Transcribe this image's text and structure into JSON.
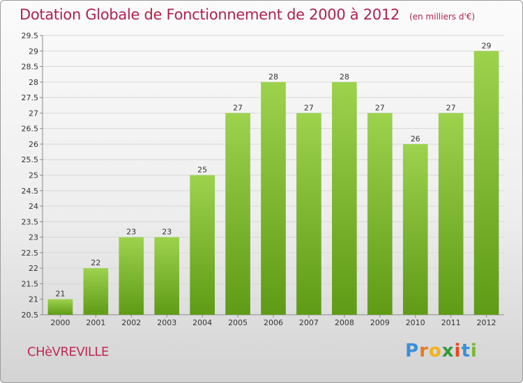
{
  "title": "Dotation Globale de Fonctionnement de 2000 à 2012",
  "subtitle": "(en milliers d'€)",
  "commune": "CHèVREVILLE",
  "logo": {
    "p": "P",
    "r": "r",
    "o": "o",
    "x": "x",
    "i1": "i",
    "t": "t",
    "i2": "i"
  },
  "colors": {
    "bar": "#7cba2e",
    "bar_light": "#9dd24d",
    "title": "#b0224e",
    "grid": "#d8d8d8"
  },
  "chart_data": {
    "type": "bar",
    "categories": [
      "2000",
      "2001",
      "2002",
      "2003",
      "2004",
      "2005",
      "2006",
      "2007",
      "2008",
      "2009",
      "2010",
      "2011",
      "2012"
    ],
    "values": [
      21,
      22,
      23,
      23,
      25,
      27,
      28,
      27,
      28,
      27,
      26,
      27,
      29
    ],
    "labels": [
      "21",
      "22",
      "23",
      "23",
      "25",
      "27",
      "28",
      "27",
      "28",
      "27",
      "26",
      "27",
      "29"
    ],
    "ylim": [
      20.5,
      29.5
    ],
    "yticks": [
      "20.5",
      "21",
      "21.5",
      "22",
      "22.5",
      "23",
      "23.5",
      "24",
      "24.5",
      "25",
      "25.5",
      "26",
      "26.5",
      "27",
      "27.5",
      "28",
      "28.5",
      "29",
      "29.5"
    ],
    "grid": true
  }
}
